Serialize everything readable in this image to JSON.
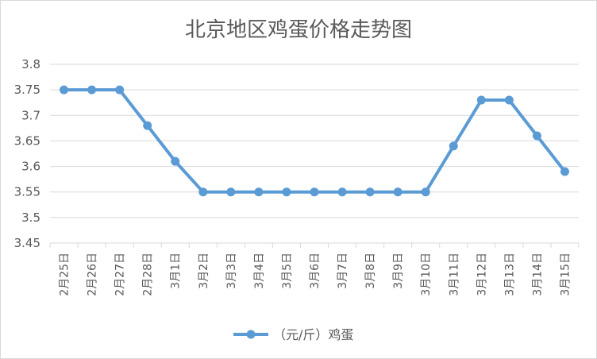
{
  "chart_data": {
    "type": "line",
    "title": "北京地区鸡蛋价格走势图",
    "xlabel": "",
    "ylabel": "",
    "categories": [
      "2月25日",
      "2月26日",
      "2月27日",
      "2月28日",
      "3月1日",
      "3月2日",
      "3月3日",
      "3月4日",
      "3月5日",
      "3月6日",
      "3月7日",
      "3月8日",
      "3月9日",
      "3月10日",
      "3月11日",
      "3月12日",
      "3月13日",
      "3月14日",
      "3月15日"
    ],
    "series": [
      {
        "name": "（元/斤）鸡蛋",
        "color": "#5b9bd5",
        "values": [
          3.75,
          3.75,
          3.75,
          3.68,
          3.61,
          3.55,
          3.55,
          3.55,
          3.55,
          3.55,
          3.55,
          3.55,
          3.55,
          3.55,
          3.64,
          3.73,
          3.73,
          3.66,
          3.59
        ]
      }
    ],
    "ylim": [
      3.45,
      3.8
    ],
    "yticks": [
      "3.8",
      "3.75",
      "3.7",
      "3.65",
      "3.6",
      "3.55",
      "3.5",
      "3.45"
    ],
    "grid": true,
    "legend": "bottom"
  }
}
